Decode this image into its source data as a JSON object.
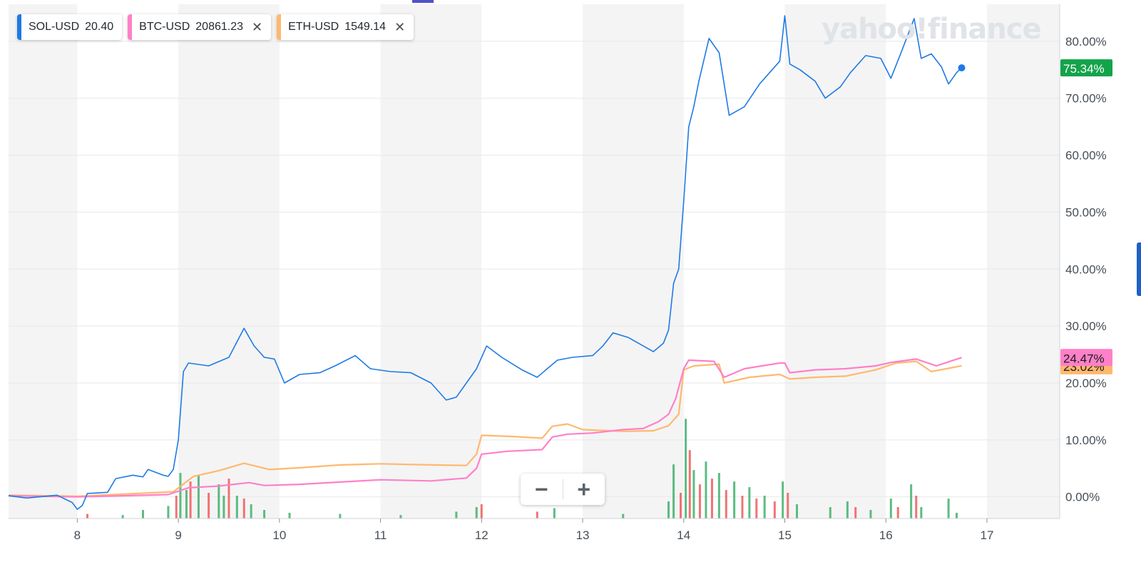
{
  "legend": [
    {
      "symbol": "SOL-USD",
      "value": "20.40",
      "color": "#1e7ae6",
      "removable": false
    },
    {
      "symbol": "BTC-USD",
      "value": "20861.23",
      "color": "#ff80c8",
      "removable": true
    },
    {
      "symbol": "ETH-USD",
      "value": "1549.14",
      "color": "#ffb86f",
      "removable": true
    }
  ],
  "close_glyph": "✕",
  "brand": "yahoo!finance",
  "zoom": {
    "minus": "−",
    "plus": "+"
  },
  "colors": {
    "up_volume": "#3fb06c",
    "down_volume": "#f05b5b",
    "band": "#f4f4f4",
    "grid": "#e8e8e8"
  },
  "chart_data": {
    "type": "line",
    "x_unit": "day",
    "xlim": [
      7.32,
      17.72
    ],
    "ylim": [
      -3.8,
      86.5
    ],
    "x_ticks": [
      8,
      9,
      10,
      11,
      12,
      13,
      14,
      15,
      16,
      17
    ],
    "y_ticks": [
      0,
      10,
      20,
      30,
      40,
      50,
      60,
      70,
      80
    ],
    "y_tick_labels": [
      "0.00%",
      "10.00%",
      "20.00%",
      "30.00%",
      "40.00%",
      "50.00%",
      "60.00%",
      "70.00%",
      "80.00%"
    ],
    "grid": true,
    "legend_position": "top-left",
    "series": [
      {
        "name": "SOL-USD",
        "color": "#1e7ae6",
        "last_label": "75.34%",
        "last_label_bg": "#13a34a",
        "points": [
          [
            7.32,
            0.2
          ],
          [
            7.5,
            -0.2
          ],
          [
            7.8,
            0.3
          ],
          [
            7.95,
            -1.0
          ],
          [
            8.0,
            -2.2
          ],
          [
            8.05,
            -1.5
          ],
          [
            8.1,
            0.6
          ],
          [
            8.3,
            0.8
          ],
          [
            8.38,
            3.2
          ],
          [
            8.55,
            3.8
          ],
          [
            8.65,
            3.5
          ],
          [
            8.7,
            4.8
          ],
          [
            8.85,
            3.8
          ],
          [
            8.9,
            3.6
          ],
          [
            8.95,
            4.8
          ],
          [
            9.0,
            10.0
          ],
          [
            9.05,
            22.0
          ],
          [
            9.1,
            23.5
          ],
          [
            9.3,
            23.0
          ],
          [
            9.5,
            24.5
          ],
          [
            9.65,
            29.6
          ],
          [
            9.75,
            26.5
          ],
          [
            9.85,
            24.5
          ],
          [
            9.95,
            24.2
          ],
          [
            10.05,
            20.0
          ],
          [
            10.2,
            21.5
          ],
          [
            10.4,
            21.8
          ],
          [
            10.55,
            23.0
          ],
          [
            10.75,
            24.8
          ],
          [
            10.9,
            22.5
          ],
          [
            11.1,
            22.0
          ],
          [
            11.3,
            21.8
          ],
          [
            11.5,
            20.0
          ],
          [
            11.65,
            17.0
          ],
          [
            11.75,
            17.5
          ],
          [
            11.85,
            20.0
          ],
          [
            11.95,
            22.5
          ],
          [
            12.05,
            26.5
          ],
          [
            12.2,
            24.5
          ],
          [
            12.4,
            22.3
          ],
          [
            12.55,
            21.0
          ],
          [
            12.65,
            22.5
          ],
          [
            12.75,
            24.0
          ],
          [
            12.9,
            24.5
          ],
          [
            13.1,
            24.8
          ],
          [
            13.2,
            26.5
          ],
          [
            13.3,
            28.8
          ],
          [
            13.45,
            28.0
          ],
          [
            13.55,
            27.0
          ],
          [
            13.7,
            25.5
          ],
          [
            13.8,
            27.0
          ],
          [
            13.85,
            29.3
          ],
          [
            13.9,
            37.5
          ],
          [
            13.95,
            40.0
          ],
          [
            14.0,
            52.0
          ],
          [
            14.05,
            65.0
          ],
          [
            14.1,
            68.5
          ],
          [
            14.15,
            73.0
          ],
          [
            14.25,
            80.5
          ],
          [
            14.35,
            78.0
          ],
          [
            14.45,
            67.0
          ],
          [
            14.6,
            68.5
          ],
          [
            14.75,
            72.5
          ],
          [
            14.85,
            74.5
          ],
          [
            14.95,
            76.5
          ],
          [
            15.0,
            84.5
          ],
          [
            15.05,
            76.0
          ],
          [
            15.15,
            75.0
          ],
          [
            15.3,
            73.0
          ],
          [
            15.4,
            70.0
          ],
          [
            15.55,
            72.0
          ],
          [
            15.65,
            74.5
          ],
          [
            15.8,
            77.5
          ],
          [
            15.95,
            77.0
          ],
          [
            16.05,
            73.5
          ],
          [
            16.15,
            78.0
          ],
          [
            16.28,
            84.0
          ],
          [
            16.35,
            77.0
          ],
          [
            16.45,
            77.8
          ],
          [
            16.55,
            75.5
          ],
          [
            16.62,
            72.5
          ],
          [
            16.7,
            74.5
          ],
          [
            16.75,
            75.34
          ]
        ]
      },
      {
        "name": "BTC-USD",
        "color": "#ff80c8",
        "last_label": "24.47%",
        "last_label_bg": "#ff80c8",
        "points": [
          [
            7.32,
            0.2
          ],
          [
            8.0,
            0.0
          ],
          [
            8.9,
            0.4
          ],
          [
            9.1,
            1.6
          ],
          [
            9.4,
            1.9
          ],
          [
            9.7,
            2.5
          ],
          [
            9.85,
            2.0
          ],
          [
            10.2,
            2.2
          ],
          [
            10.6,
            2.6
          ],
          [
            11.0,
            3.0
          ],
          [
            11.5,
            2.8
          ],
          [
            11.85,
            3.3
          ],
          [
            11.95,
            5.0
          ],
          [
            12.0,
            7.5
          ],
          [
            12.25,
            8.0
          ],
          [
            12.6,
            8.3
          ],
          [
            12.7,
            10.5
          ],
          [
            12.85,
            11.0
          ],
          [
            13.1,
            11.2
          ],
          [
            13.4,
            11.8
          ],
          [
            13.6,
            12.0
          ],
          [
            13.75,
            13.2
          ],
          [
            13.85,
            14.5
          ],
          [
            13.92,
            17.2
          ],
          [
            14.0,
            22.5
          ],
          [
            14.05,
            24.0
          ],
          [
            14.3,
            23.8
          ],
          [
            14.4,
            21.0
          ],
          [
            14.6,
            22.5
          ],
          [
            14.95,
            23.5
          ],
          [
            15.0,
            23.5
          ],
          [
            15.05,
            21.8
          ],
          [
            15.3,
            22.3
          ],
          [
            15.6,
            22.5
          ],
          [
            15.9,
            23.0
          ],
          [
            16.05,
            23.6
          ],
          [
            16.3,
            24.2
          ],
          [
            16.5,
            23.0
          ],
          [
            16.75,
            24.47
          ]
        ]
      },
      {
        "name": "ETH-USD",
        "color": "#ffb86f",
        "last_label": "23.02%",
        "last_label_bg": "#ffb86f",
        "points": [
          [
            7.32,
            0.3
          ],
          [
            8.0,
            0.1
          ],
          [
            8.95,
            0.9
          ],
          [
            9.15,
            3.6
          ],
          [
            9.4,
            4.6
          ],
          [
            9.65,
            5.9
          ],
          [
            9.9,
            4.8
          ],
          [
            10.2,
            5.1
          ],
          [
            10.6,
            5.6
          ],
          [
            11.0,
            5.8
          ],
          [
            11.5,
            5.6
          ],
          [
            11.85,
            5.5
          ],
          [
            11.95,
            7.5
          ],
          [
            12.0,
            10.8
          ],
          [
            12.3,
            10.6
          ],
          [
            12.6,
            10.3
          ],
          [
            12.7,
            12.4
          ],
          [
            12.85,
            12.8
          ],
          [
            13.0,
            11.8
          ],
          [
            13.4,
            11.5
          ],
          [
            13.7,
            11.6
          ],
          [
            13.85,
            12.5
          ],
          [
            13.95,
            14.5
          ],
          [
            14.0,
            22.3
          ],
          [
            14.1,
            23.0
          ],
          [
            14.35,
            23.3
          ],
          [
            14.4,
            20.0
          ],
          [
            14.65,
            21.0
          ],
          [
            14.95,
            21.5
          ],
          [
            15.05,
            20.7
          ],
          [
            15.3,
            21.0
          ],
          [
            15.6,
            21.2
          ],
          [
            15.9,
            22.3
          ],
          [
            16.1,
            23.5
          ],
          [
            16.3,
            23.8
          ],
          [
            16.45,
            22.0
          ],
          [
            16.75,
            23.02
          ]
        ]
      }
    ],
    "volume": [
      {
        "x": 8.1,
        "h": 0.8,
        "up": false
      },
      {
        "x": 8.45,
        "h": 0.6,
        "up": true
      },
      {
        "x": 8.65,
        "h": 1.5,
        "up": true
      },
      {
        "x": 8.9,
        "h": 2.2,
        "up": true
      },
      {
        "x": 8.98,
        "h": 4.0,
        "up": false
      },
      {
        "x": 9.02,
        "h": 8.0,
        "up": true
      },
      {
        "x": 9.08,
        "h": 5.0,
        "up": true
      },
      {
        "x": 9.12,
        "h": 6.5,
        "up": false
      },
      {
        "x": 9.2,
        "h": 7.5,
        "up": true
      },
      {
        "x": 9.3,
        "h": 4.5,
        "up": false
      },
      {
        "x": 9.4,
        "h": 6.0,
        "up": true
      },
      {
        "x": 9.45,
        "h": 4.0,
        "up": true
      },
      {
        "x": 9.5,
        "h": 7.0,
        "up": false
      },
      {
        "x": 9.58,
        "h": 4.0,
        "up": true
      },
      {
        "x": 9.65,
        "h": 3.5,
        "up": false
      },
      {
        "x": 9.72,
        "h": 2.5,
        "up": true
      },
      {
        "x": 9.85,
        "h": 1.5,
        "up": true
      },
      {
        "x": 10.1,
        "h": 1.0,
        "up": true
      },
      {
        "x": 10.6,
        "h": 0.8,
        "up": true
      },
      {
        "x": 11.2,
        "h": 0.6,
        "up": true
      },
      {
        "x": 11.75,
        "h": 1.2,
        "up": true
      },
      {
        "x": 11.95,
        "h": 2.0,
        "up": true
      },
      {
        "x": 12.0,
        "h": 2.5,
        "up": false
      },
      {
        "x": 12.55,
        "h": 1.2,
        "up": false
      },
      {
        "x": 12.72,
        "h": 1.8,
        "up": true
      },
      {
        "x": 13.4,
        "h": 0.8,
        "up": true
      },
      {
        "x": 13.85,
        "h": 3.0,
        "up": true
      },
      {
        "x": 13.9,
        "h": 9.5,
        "up": true
      },
      {
        "x": 13.97,
        "h": 4.5,
        "up": false
      },
      {
        "x": 14.02,
        "h": 17.5,
        "up": true
      },
      {
        "x": 14.06,
        "h": 12.0,
        "up": false
      },
      {
        "x": 14.1,
        "h": 8.5,
        "up": true
      },
      {
        "x": 14.16,
        "h": 6.0,
        "up": false
      },
      {
        "x": 14.22,
        "h": 10.0,
        "up": true
      },
      {
        "x": 14.28,
        "h": 7.0,
        "up": false
      },
      {
        "x": 14.35,
        "h": 8.0,
        "up": true
      },
      {
        "x": 14.42,
        "h": 5.0,
        "up": false
      },
      {
        "x": 14.5,
        "h": 6.5,
        "up": true
      },
      {
        "x": 14.58,
        "h": 4.0,
        "up": false
      },
      {
        "x": 14.65,
        "h": 5.5,
        "up": true
      },
      {
        "x": 14.72,
        "h": 3.5,
        "up": false
      },
      {
        "x": 14.8,
        "h": 4.0,
        "up": true
      },
      {
        "x": 14.9,
        "h": 3.0,
        "up": false
      },
      {
        "x": 14.98,
        "h": 6.5,
        "up": true
      },
      {
        "x": 15.03,
        "h": 4.5,
        "up": false
      },
      {
        "x": 15.12,
        "h": 2.5,
        "up": true
      },
      {
        "x": 15.45,
        "h": 2.0,
        "up": true
      },
      {
        "x": 15.62,
        "h": 3.0,
        "up": true
      },
      {
        "x": 15.7,
        "h": 2.0,
        "up": false
      },
      {
        "x": 15.85,
        "h": 1.5,
        "up": true
      },
      {
        "x": 16.05,
        "h": 3.5,
        "up": true
      },
      {
        "x": 16.12,
        "h": 2.0,
        "up": false
      },
      {
        "x": 16.25,
        "h": 6.0,
        "up": true
      },
      {
        "x": 16.3,
        "h": 4.0,
        "up": false
      },
      {
        "x": 16.35,
        "h": 2.0,
        "up": true
      },
      {
        "x": 16.62,
        "h": 3.5,
        "up": true
      },
      {
        "x": 16.7,
        "h": 1.0,
        "up": true
      }
    ]
  }
}
